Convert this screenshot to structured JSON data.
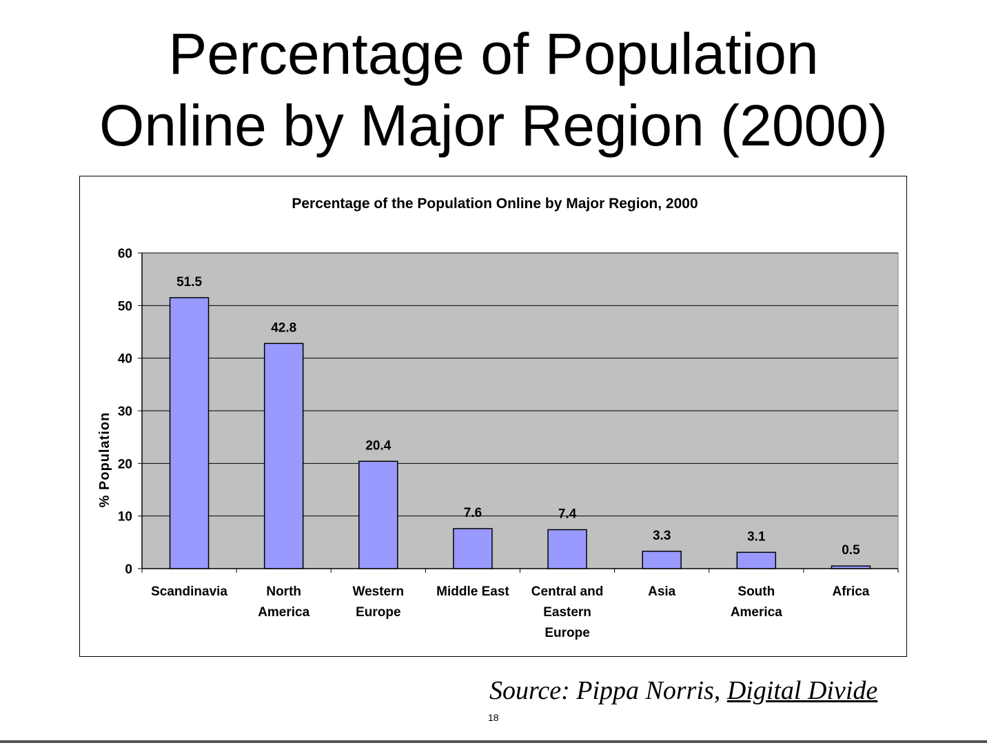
{
  "slide": {
    "title_line1": "Percentage of Population",
    "title_line2": "Online by Major Region (2000)",
    "source_prefix": "Source: Pippa Norris, ",
    "source_book": "Digital Divide",
    "page_number": "18"
  },
  "colors": {
    "bar_fill": "#9999ff",
    "plot_bg": "#c0c0c0",
    "bar_stroke": "#000000"
  },
  "chart_data": {
    "type": "bar",
    "title": "Percentage of the Population Online by Major Region, 2000",
    "ylabel": "% Population",
    "xlabel": "",
    "ylim": [
      0,
      60
    ],
    "yticks": [
      0,
      10,
      20,
      30,
      40,
      50,
      60
    ],
    "grid": true,
    "categories": [
      [
        "Scandinavia"
      ],
      [
        "North",
        "America"
      ],
      [
        "Western",
        "Europe"
      ],
      [
        "Middle East"
      ],
      [
        "Central and",
        "Eastern",
        "Europe"
      ],
      [
        "Asia"
      ],
      [
        "South",
        "America"
      ],
      [
        "Africa"
      ]
    ],
    "values": [
      51.5,
      42.8,
      20.4,
      7.6,
      7.4,
      3.3,
      3.1,
      0.5
    ],
    "value_labels": [
      "51.5",
      "42.8",
      "20.4",
      "7.6",
      "7.4",
      "3.3",
      "3.1",
      "0.5"
    ]
  }
}
